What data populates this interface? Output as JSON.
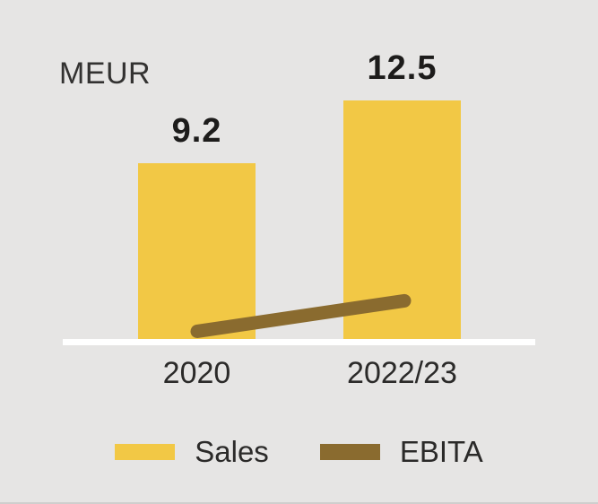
{
  "chart_data": {
    "type": "bar+line combo",
    "title": "",
    "unit_label": "MEUR",
    "categories": [
      "2020",
      "2022/23"
    ],
    "series": [
      {
        "name": "Sales",
        "type": "bar",
        "values": [
          9.2,
          12.5
        ],
        "data_labels": [
          "9.2",
          "12.5"
        ],
        "color": "#F2C845"
      },
      {
        "name": "EBITA",
        "type": "line",
        "values": [
          0.4,
          2.0
        ],
        "color": "#8A6B2F"
      }
    ],
    "ylim": [
      0,
      13.5
    ],
    "grid": false,
    "axis_line_color": "#FFFFFF",
    "legend_position": "bottom"
  },
  "colors": {
    "background": "#E6E5E4",
    "sales": "#F2C845",
    "ebita": "#8A6B2F",
    "text": "#2B2A29",
    "data_label_text": "#1D1C1B"
  }
}
